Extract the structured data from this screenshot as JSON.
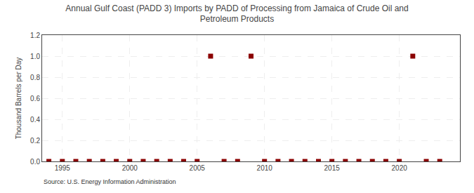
{
  "chart_data": {
    "type": "scatter",
    "title": "Annual Gulf Coast (PADD 3) Imports by PADD of Processing from Jamaica of Crude Oil and\nPetroleum Products",
    "ylabel": "Thousand Barrels per Day",
    "source": "Source: U.S. Energy Information Administration",
    "x": [
      1994,
      1995,
      1996,
      1997,
      1998,
      1999,
      2000,
      2001,
      2002,
      2003,
      2004,
      2005,
      2006,
      2007,
      2008,
      2009,
      2010,
      2011,
      2012,
      2013,
      2014,
      2015,
      2016,
      2017,
      2018,
      2019,
      2020,
      2021,
      2022,
      2023
    ],
    "values": [
      0,
      0,
      0,
      0,
      0,
      0,
      0,
      0,
      0,
      0,
      0,
      0,
      1,
      0,
      0,
      1,
      0,
      0,
      0,
      0,
      0,
      0,
      0,
      0,
      0,
      0,
      0,
      1,
      0,
      0
    ],
    "color": "#8B0000",
    "marker": "square",
    "xlim": [
      1993.5,
      2024.5
    ],
    "xticks": [
      1995,
      2000,
      2005,
      2010,
      2015,
      2020
    ],
    "ylim": [
      0.0,
      1.2
    ],
    "yticks": [
      {
        "value": 0.0,
        "label": "0.0"
      },
      0.2,
      0.4,
      0.6,
      0.8,
      {
        "value": 1.0,
        "label": "1.0"
      },
      1.2
    ],
    "grid": true
  }
}
